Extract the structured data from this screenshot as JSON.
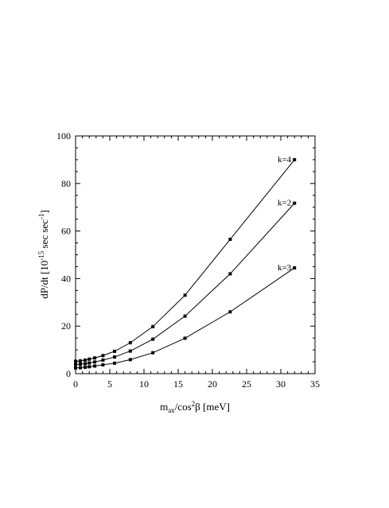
{
  "chart_data": {
    "type": "line",
    "xlabel": "m_ax/cos²β [meV]",
    "xlabel_main": "m",
    "xlabel_sub": "ax",
    "xlabel_mid": "/cos",
    "xlabel_sup": "2",
    "xlabel_end": "β [meV]",
    "ylabel": "dP/dt [10⁻¹⁵ sec sec⁻¹]",
    "ylabel_a": "dP/dt  [10",
    "ylabel_sup1": "-15",
    "ylabel_b": " sec sec",
    "ylabel_sup2": "-1",
    "ylabel_c": "]",
    "xlim": [
      0,
      35
    ],
    "ylim": [
      0,
      100
    ],
    "xticks": [
      "0",
      "5",
      "10",
      "15",
      "20",
      "25",
      "30",
      "35"
    ],
    "yticks": [
      "0",
      "20",
      "40",
      "60",
      "80",
      "100"
    ],
    "series": [
      {
        "name": "k=4",
        "x": [
          0.0,
          0.7,
          1.4,
          2.0,
          2.8,
          4.0,
          5.7,
          8.0,
          11.3,
          16.0,
          22.6,
          32.0
        ],
        "y": [
          5.2,
          5.4,
          5.7,
          6.1,
          6.6,
          7.6,
          9.4,
          13.0,
          19.8,
          33.0,
          56.5,
          90.0
        ]
      },
      {
        "name": "k=2",
        "x": [
          0.0,
          0.7,
          1.4,
          2.0,
          2.8,
          4.0,
          5.7,
          8.0,
          11.3,
          16.0,
          22.6,
          32.0
        ],
        "y": [
          3.8,
          4.0,
          4.2,
          4.5,
          4.9,
          5.7,
          7.0,
          9.5,
          14.5,
          24.2,
          42.0,
          71.7
        ]
      },
      {
        "name": "k=3",
        "x": [
          0.0,
          0.7,
          1.4,
          2.0,
          2.8,
          4.0,
          5.7,
          8.0,
          11.3,
          16.0,
          22.6,
          32.0
        ],
        "y": [
          2.4,
          2.5,
          2.7,
          2.9,
          3.2,
          3.7,
          4.4,
          5.9,
          8.8,
          14.9,
          26.0,
          44.5
        ]
      }
    ]
  }
}
